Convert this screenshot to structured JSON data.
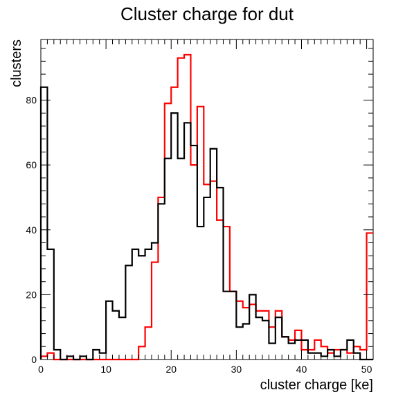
{
  "chart_data": {
    "type": "histogram",
    "title": "Cluster charge for dut",
    "xlabel": "cluster charge [ke]",
    "ylabel": "clusters",
    "xlim": [
      0,
      51
    ],
    "ylim": [
      0,
      98.7
    ],
    "bin_width": 1,
    "x_ticks": [
      0,
      10,
      20,
      30,
      40,
      50
    ],
    "y_ticks": [
      0,
      20,
      40,
      60,
      80
    ],
    "grid": false,
    "legend": "none",
    "series": [
      {
        "color": "#ff0000",
        "values": [
          1,
          2,
          0,
          0,
          0,
          0,
          0,
          0,
          0,
          0,
          0,
          0,
          0,
          0,
          0,
          4,
          10,
          30,
          50,
          79,
          84,
          93,
          94,
          60,
          78,
          54,
          55,
          43,
          41,
          21,
          18,
          16,
          17,
          15,
          15,
          10,
          15,
          7,
          6,
          9,
          3,
          3,
          6,
          4,
          2,
          3,
          3,
          2,
          4,
          3,
          39
        ]
      },
      {
        "color": "#000000",
        "values": [
          84,
          34,
          3,
          0,
          1,
          0,
          1,
          0,
          3,
          2,
          18,
          15,
          13,
          29,
          34,
          32,
          34,
          36,
          48,
          62,
          76,
          62,
          73,
          66,
          41,
          50,
          65,
          53,
          21,
          21,
          10,
          11,
          20,
          13,
          12,
          5,
          13,
          7,
          5,
          6,
          6,
          2,
          2,
          1,
          3,
          1,
          3,
          6,
          2,
          0,
          0
        ]
      }
    ]
  }
}
